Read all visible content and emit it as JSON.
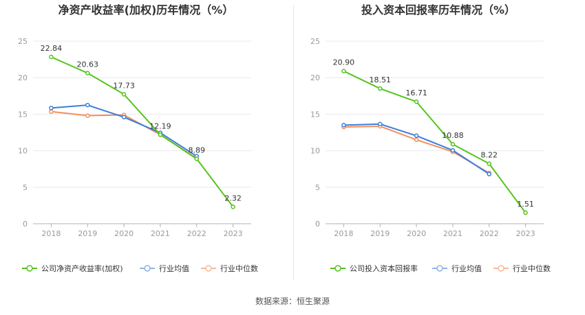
{
  "colors": {
    "company": "#52c41a",
    "industry_avg": "#3b7ddd",
    "industry_median": "#f28e5c",
    "grid": "#e8e8f0",
    "axis": "#999999"
  },
  "source_text": "数据来源：恒生聚源",
  "chart_data": [
    {
      "type": "line",
      "title": "净资产收益率(加权)历年情况（%）",
      "categories": [
        "2018",
        "2019",
        "2020",
        "2021",
        "2022",
        "2023"
      ],
      "ylim": [
        0,
        25
      ],
      "yticks": [
        0,
        5,
        10,
        15,
        20,
        25
      ],
      "grid": true,
      "legend_position": "bottom-left",
      "series": [
        {
          "name": "公司净资产收益率(加权)",
          "key": "company",
          "values": [
            22.84,
            20.63,
            17.73,
            12.19,
            8.89,
            2.32
          ],
          "labels": [
            "22.84",
            "20.63",
            "17.73",
            "12.19",
            "8.89",
            "2.32"
          ]
        },
        {
          "name": "行业均值",
          "key": "industry_avg",
          "values": [
            15.85,
            16.25,
            14.6,
            12.45,
            9.25,
            null
          ]
        },
        {
          "name": "行业中位数",
          "key": "industry_median",
          "values": [
            15.35,
            14.8,
            14.9,
            12.2,
            8.95,
            null
          ]
        }
      ]
    },
    {
      "type": "line",
      "title": "投入资本回报率历年情况（%）",
      "categories": [
        "2018",
        "2019",
        "2020",
        "2021",
        "2022",
        "2023"
      ],
      "ylim": [
        0,
        25
      ],
      "yticks": [
        0,
        5,
        10,
        15,
        20,
        25
      ],
      "grid": true,
      "legend_position": "bottom-left",
      "series": [
        {
          "name": "公司投入资本回报率",
          "key": "company",
          "values": [
            20.9,
            18.51,
            16.71,
            10.88,
            8.22,
            1.51
          ],
          "labels": [
            "20.90",
            "18.51",
            "16.71",
            "10.88",
            "8.22",
            "1.51"
          ]
        },
        {
          "name": "行业均值",
          "key": "industry_avg",
          "values": [
            13.5,
            13.65,
            12.05,
            10.05,
            6.8,
            null
          ]
        },
        {
          "name": "行业中位数",
          "key": "industry_median",
          "values": [
            13.25,
            13.35,
            11.5,
            9.85,
            6.95,
            null
          ]
        }
      ]
    }
  ]
}
